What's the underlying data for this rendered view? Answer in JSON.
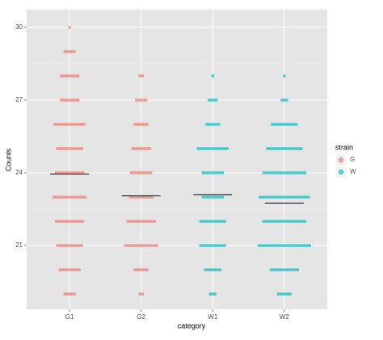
{
  "chart_data": {
    "type": "dotplot",
    "x_label": "category",
    "y_label": "Counts",
    "categories": [
      "G1",
      "G2",
      "W1",
      "W2"
    ],
    "strain": [
      "G",
      "G",
      "W",
      "W"
    ],
    "levels": [
      19,
      20,
      21,
      22,
      23,
      24,
      25,
      26,
      27,
      28,
      29,
      30
    ],
    "counts": [
      [
        5,
        9,
        11,
        12,
        14,
        12,
        11,
        13,
        8,
        8,
        5,
        1
      ],
      [
        2,
        6,
        14,
        12,
        10,
        9,
        8,
        6,
        5,
        2,
        0,
        0
      ],
      [
        3,
        7,
        11,
        11,
        9,
        9,
        13,
        6,
        4,
        1,
        0,
        0
      ],
      [
        6,
        12,
        22,
        18,
        21,
        18,
        15,
        11,
        3,
        1,
        0,
        0
      ]
    ],
    "means": [
      23.95,
      23.05,
      23.1,
      22.75
    ],
    "ylim": [
      18.37,
      30.73
    ],
    "yticks": [
      21,
      24,
      27,
      30
    ],
    "grid": true,
    "legend": {
      "title": "strain",
      "position": "right",
      "entries": [
        {
          "name": "G",
          "color": "#F8766D"
        },
        {
          "name": "W",
          "color": "#00BFC4"
        }
      ]
    }
  }
}
